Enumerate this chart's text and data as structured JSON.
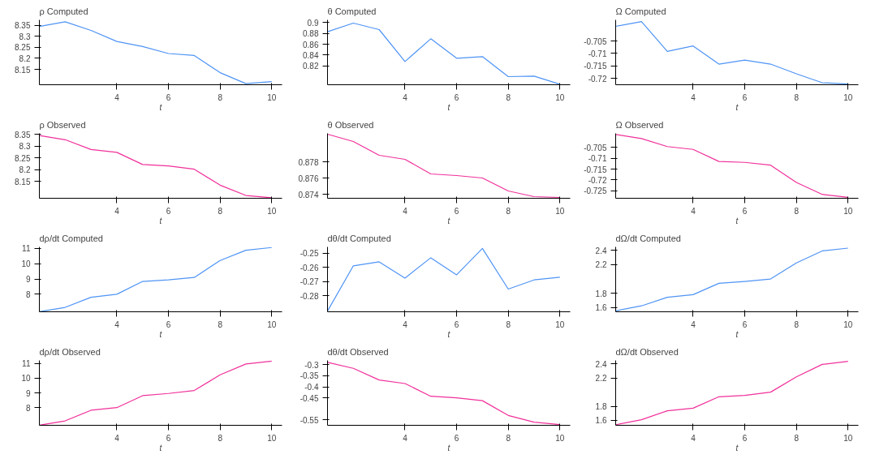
{
  "chart_data": [
    {
      "type": "line",
      "title": "ρ Computed",
      "xlabel": "t",
      "x": [
        1,
        2,
        3,
        4,
        5,
        6,
        7,
        8,
        9,
        10
      ],
      "xlim": [
        1,
        10.4
      ],
      "xticks": [
        4,
        6,
        8,
        10
      ],
      "ylim": [
        8.08,
        8.375
      ],
      "yticks": [
        8.15,
        8.2,
        8.25,
        8.3,
        8.35
      ],
      "grid": false,
      "series": [
        {
          "color": "#4f94f5",
          "values": [
            8.345,
            8.366,
            8.327,
            8.277,
            8.254,
            8.222,
            8.213,
            8.135,
            8.085,
            8.094
          ]
        }
      ]
    },
    {
      "type": "line",
      "title": "θ Computed",
      "xlabel": "t",
      "x": [
        1,
        2,
        3,
        4,
        5,
        6,
        7,
        8,
        9,
        10
      ],
      "xlim": [
        1,
        10.4
      ],
      "xticks": [
        4,
        6,
        8,
        10
      ],
      "ylim": [
        0.785,
        0.905
      ],
      "yticks": [
        0.82,
        0.84,
        0.86,
        0.88,
        0.9
      ],
      "grid": false,
      "series": [
        {
          "color": "#4f94f5",
          "values": [
            0.883,
            0.899,
            0.887,
            0.828,
            0.87,
            0.834,
            0.837,
            0.8,
            0.801,
            0.786
          ]
        }
      ]
    },
    {
      "type": "line",
      "title": "Ω Computed",
      "xlabel": "t",
      "x": [
        1,
        2,
        3,
        4,
        5,
        6,
        7,
        8,
        9,
        10
      ],
      "xlim": [
        1,
        10.4
      ],
      "xticks": [
        4,
        6,
        8,
        10
      ],
      "ylim": [
        -0.7226,
        -0.6965
      ],
      "yticks": [
        -0.72,
        -0.715,
        -0.71,
        -0.705
      ],
      "grid": false,
      "series": [
        {
          "color": "#4f94f5",
          "values": [
            -0.6991,
            -0.6972,
            -0.7092,
            -0.707,
            -0.7143,
            -0.7127,
            -0.7143,
            -0.7182,
            -0.7218,
            -0.7223
          ]
        }
      ]
    },
    {
      "type": "line",
      "title": "ρ Observed",
      "xlabel": "t",
      "x": [
        1,
        2,
        3,
        4,
        5,
        6,
        7,
        8,
        9,
        10
      ],
      "xlim": [
        1,
        10.4
      ],
      "xticks": [
        4,
        6,
        8,
        10
      ],
      "ylim": [
        8.078,
        8.355
      ],
      "yticks": [
        8.15,
        8.2,
        8.25,
        8.3,
        8.35
      ],
      "grid": false,
      "series": [
        {
          "color": "#f0309a",
          "values": [
            8.346,
            8.328,
            8.286,
            8.274,
            8.222,
            8.216,
            8.202,
            8.134,
            8.09,
            8.08
          ]
        }
      ]
    },
    {
      "type": "line",
      "title": "θ Observed",
      "xlabel": "t",
      "x": [
        1,
        2,
        3,
        4,
        5,
        6,
        7,
        8,
        9,
        10
      ],
      "xlim": [
        1,
        10.4
      ],
      "xticks": [
        4,
        6,
        8,
        10
      ],
      "ylim": [
        0.8735,
        0.8815
      ],
      "yticks": [
        0.874,
        0.876,
        0.878
      ],
      "grid": false,
      "series": [
        {
          "color": "#f0309a",
          "values": [
            0.8814,
            0.8805,
            0.8788,
            0.8783,
            0.8765,
            0.8763,
            0.876,
            0.8744,
            0.8737,
            0.8736
          ]
        }
      ]
    },
    {
      "type": "line",
      "title": "Ω Observed",
      "xlabel": "t",
      "x": [
        1,
        2,
        3,
        4,
        5,
        6,
        7,
        8,
        9,
        10
      ],
      "xlim": [
        1,
        10.4
      ],
      "xticks": [
        4,
        6,
        8,
        10
      ],
      "ylim": [
        -0.7285,
        -0.6985
      ],
      "yticks": [
        -0.725,
        -0.72,
        -0.715,
        -0.71,
        -0.705
      ],
      "grid": false,
      "series": [
        {
          "color": "#f0309a",
          "values": [
            -0.699,
            -0.7009,
            -0.7046,
            -0.7059,
            -0.7115,
            -0.7119,
            -0.7132,
            -0.7212,
            -0.7267,
            -0.7281
          ]
        }
      ]
    },
    {
      "type": "line",
      "title": "dρ/dt Computed",
      "xlabel": "t",
      "x": [
        1,
        2,
        3,
        4,
        5,
        6,
        7,
        8,
        9,
        10
      ],
      "xlim": [
        1,
        10.4
      ],
      "xticks": [
        4,
        6,
        8,
        10
      ],
      "ylim": [
        6.85,
        11.1
      ],
      "yticks": [
        8,
        9,
        10,
        11
      ],
      "grid": false,
      "series": [
        {
          "color": "#4f94f5",
          "values": [
            6.86,
            7.14,
            7.8,
            8.0,
            8.84,
            8.94,
            9.1,
            10.21,
            10.88,
            11.06
          ]
        }
      ]
    },
    {
      "type": "line",
      "title": "dθ/dt Computed",
      "xlabel": "t",
      "x": [
        1,
        2,
        3,
        4,
        5,
        6,
        7,
        8,
        9,
        10
      ],
      "xlim": [
        1,
        10.4
      ],
      "xticks": [
        4,
        6,
        8,
        10
      ],
      "ylim": [
        -0.2915,
        -0.2455
      ],
      "yticks": [
        -0.28,
        -0.27,
        -0.26,
        -0.25
      ],
      "grid": false,
      "series": [
        {
          "color": "#4f94f5",
          "values": [
            -0.291,
            -0.2589,
            -0.2561,
            -0.2676,
            -0.2532,
            -0.2653,
            -0.2466,
            -0.2754,
            -0.2689,
            -0.267
          ]
        }
      ]
    },
    {
      "type": "line",
      "title": "dΩ/dt Computed",
      "xlabel": "t",
      "x": [
        1,
        2,
        3,
        4,
        5,
        6,
        7,
        8,
        9,
        10
      ],
      "xlim": [
        1,
        10.4
      ],
      "xticks": [
        4,
        6,
        8,
        10
      ],
      "ylim": [
        1.54,
        2.45
      ],
      "yticks": [
        1.6,
        1.8,
        2.2,
        2.4
      ],
      "grid": false,
      "series": [
        {
          "color": "#4f94f5",
          "values": [
            1.553,
            1.623,
            1.744,
            1.78,
            1.94,
            1.966,
            2.0,
            2.226,
            2.394,
            2.433
          ]
        }
      ]
    },
    {
      "type": "line",
      "title": "dρ/dt Observed",
      "xlabel": "t",
      "x": [
        1,
        2,
        3,
        4,
        5,
        6,
        7,
        8,
        9,
        10
      ],
      "xlim": [
        1,
        10.4
      ],
      "xticks": [
        4,
        6,
        8,
        10
      ],
      "ylim": [
        6.8,
        11.2
      ],
      "yticks": [
        8,
        9,
        10,
        11
      ],
      "grid": false,
      "series": [
        {
          "color": "#f0309a",
          "values": [
            6.81,
            7.1,
            7.82,
            8.0,
            8.81,
            8.96,
            9.16,
            10.22,
            10.96,
            11.15
          ]
        }
      ]
    },
    {
      "type": "line",
      "title": "dθ/dt Observed",
      "xlabel": "t",
      "x": [
        1,
        2,
        3,
        4,
        5,
        6,
        7,
        8,
        9,
        10
      ],
      "xlim": [
        1,
        10.4
      ],
      "xticks": [
        4,
        6,
        8,
        10
      ],
      "ylim": [
        -0.575,
        -0.28
      ],
      "yticks": [
        -0.55,
        -0.45,
        -0.4,
        -0.35,
        -0.3
      ],
      "grid": false,
      "series": [
        {
          "color": "#f0309a",
          "values": [
            -0.289,
            -0.316,
            -0.369,
            -0.385,
            -0.443,
            -0.45,
            -0.463,
            -0.53,
            -0.561,
            -0.572
          ]
        }
      ]
    },
    {
      "type": "line",
      "title": "dΩ/dt Observed",
      "xlabel": "t",
      "x": [
        1,
        2,
        3,
        4,
        5,
        6,
        7,
        8,
        9,
        10
      ],
      "xlim": [
        1,
        10.4
      ],
      "xticks": [
        4,
        6,
        8,
        10
      ],
      "ylim": [
        1.53,
        2.45
      ],
      "yticks": [
        1.6,
        1.8,
        2.2,
        2.4
      ],
      "grid": false,
      "series": [
        {
          "color": "#f0309a",
          "values": [
            1.538,
            1.609,
            1.736,
            1.773,
            1.935,
            1.955,
            2.0,
            2.218,
            2.394,
            2.436
          ]
        }
      ]
    }
  ]
}
